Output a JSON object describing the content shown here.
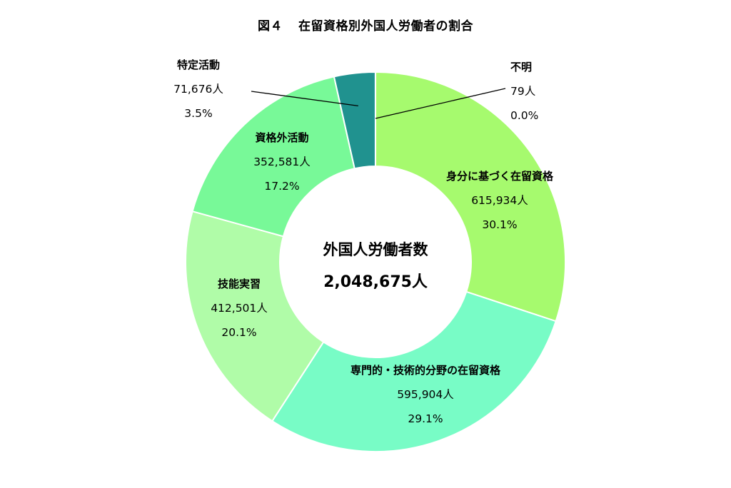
{
  "title": {
    "number": "図４",
    "text": "在留資格別外国人労働者の割合"
  },
  "chart_data": {
    "type": "pie",
    "variant": "donut",
    "center_label": "外国人労働者数",
    "center_value": "2,048,675人",
    "slices": [
      {
        "name": "身分に基づく在留資格",
        "value": 615934,
        "count_label": "615,934人",
        "percent_label": "30.1%",
        "color": "#a6fa6e"
      },
      {
        "name": "専門的・技術的分野の在留資格",
        "value": 595904,
        "count_label": "595,904人",
        "percent_label": "29.1%",
        "color": "#78fcc6"
      },
      {
        "name": "技能実習",
        "value": 412501,
        "count_label": "412,501人",
        "percent_label": "20.1%",
        "color": "#b0fca8"
      },
      {
        "name": "資格外活動",
        "value": 352581,
        "count_label": "352,581人",
        "percent_label": "17.2%",
        "color": "#78f998"
      },
      {
        "name": "特定活動",
        "value": 71676,
        "count_label": "71,676人",
        "percent_label": "3.5%",
        "color": "#20928f"
      },
      {
        "name": "不明",
        "value": 79,
        "count_label": "79人",
        "percent_label": "0.0%",
        "color": "#2a9a8c"
      }
    ]
  }
}
